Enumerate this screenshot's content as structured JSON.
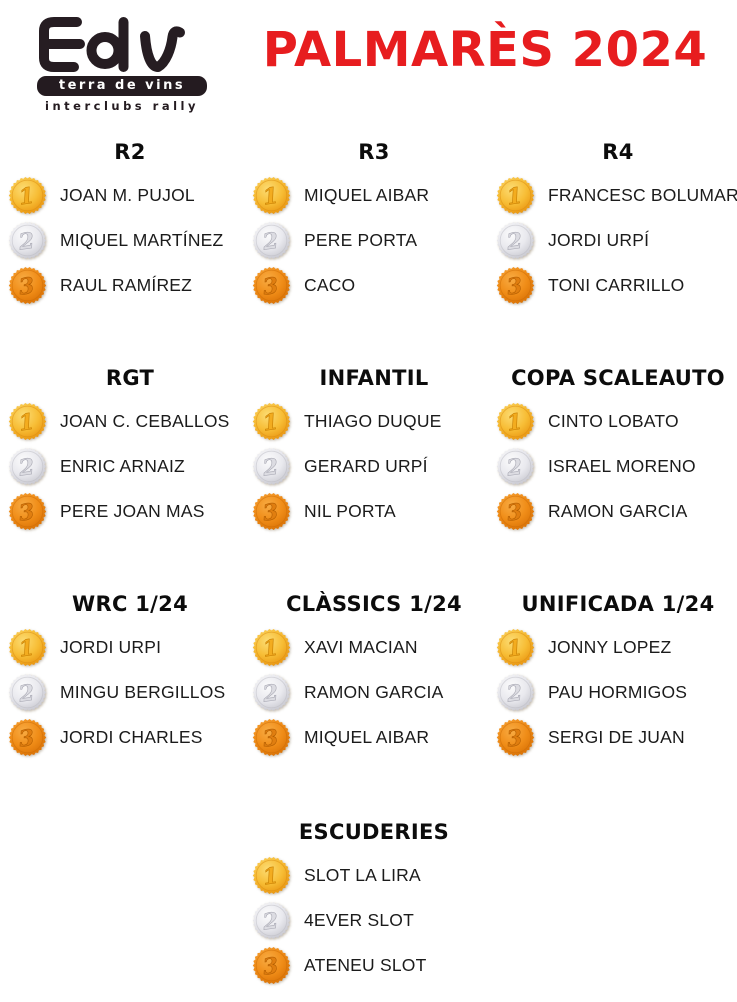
{
  "header": {
    "logo": {
      "acronym": "tdv",
      "subtitle": "terra de vins",
      "tagline": "interclubs rally"
    },
    "title": "PALMARÈS 2024",
    "title_color": "#e71d1f"
  },
  "medal_colors": {
    "gold": {
      "light": "#fcdc74",
      "mid": "#f7bd35",
      "dark": "#e8920e",
      "ring": "#d98a10",
      "num_fill": "#f3ac1f",
      "num_stroke": "#c67d00"
    },
    "silver": {
      "light": "#fbfbfc",
      "mid": "#e9e9ee",
      "dark": "#c5c5cd",
      "ring": "#b9b9c2",
      "num_fill": "#dcdce2",
      "num_stroke": "#a9a9b4"
    },
    "bronze": {
      "light": "#f8ab43",
      "mid": "#f08d18",
      "dark": "#d87004",
      "ring": "#c96a06",
      "num_fill": "#e07e10",
      "num_stroke": "#b25d00"
    }
  },
  "categories": [
    {
      "title": "R2",
      "podium": [
        {
          "rank": 1,
          "medal": "gold",
          "name": "JOAN M. PUJOL"
        },
        {
          "rank": 2,
          "medal": "silver",
          "name": "MIQUEL MARTÍNEZ"
        },
        {
          "rank": 3,
          "medal": "bronze",
          "name": "RAUL RAMÍREZ"
        }
      ]
    },
    {
      "title": "R3",
      "podium": [
        {
          "rank": 1,
          "medal": "gold",
          "name": "MIQUEL AIBAR"
        },
        {
          "rank": 2,
          "medal": "silver",
          "name": "PERE PORTA"
        },
        {
          "rank": 3,
          "medal": "bronze",
          "name": "CACO"
        }
      ]
    },
    {
      "title": "R4",
      "podium": [
        {
          "rank": 1,
          "medal": "gold",
          "name": "FRANCESC BOLUMAR"
        },
        {
          "rank": 2,
          "medal": "silver",
          "name": "JORDI URPÍ"
        },
        {
          "rank": 3,
          "medal": "bronze",
          "name": "TONI CARRILLO"
        }
      ]
    },
    {
      "title": "RGT",
      "podium": [
        {
          "rank": 1,
          "medal": "gold",
          "name": "JOAN C. CEBALLOS"
        },
        {
          "rank": 2,
          "medal": "silver",
          "name": "ENRIC ARNAIZ"
        },
        {
          "rank": 3,
          "medal": "bronze",
          "name": "PERE JOAN MAS"
        }
      ]
    },
    {
      "title": "INFANTIL",
      "podium": [
        {
          "rank": 1,
          "medal": "gold",
          "name": "THIAGO DUQUE"
        },
        {
          "rank": 2,
          "medal": "silver",
          "name": "GERARD URPÍ"
        },
        {
          "rank": 3,
          "medal": "bronze",
          "name": "NIL PORTA"
        }
      ]
    },
    {
      "title": "COPA SCALEAUTO",
      "podium": [
        {
          "rank": 1,
          "medal": "gold",
          "name": "CINTO LOBATO"
        },
        {
          "rank": 2,
          "medal": "silver",
          "name": "ISRAEL MORENO"
        },
        {
          "rank": 3,
          "medal": "bronze",
          "name": "RAMON GARCIA"
        }
      ]
    },
    {
      "title": "WRC 1/24",
      "podium": [
        {
          "rank": 1,
          "medal": "gold",
          "name": "JORDI URPI"
        },
        {
          "rank": 2,
          "medal": "silver",
          "name": "MINGU BERGILLOS"
        },
        {
          "rank": 3,
          "medal": "bronze",
          "name": "JORDI CHARLES"
        }
      ]
    },
    {
      "title": "CLÀSSICS 1/24",
      "podium": [
        {
          "rank": 1,
          "medal": "gold",
          "name": "XAVI MACIAN"
        },
        {
          "rank": 2,
          "medal": "silver",
          "name": "RAMON GARCIA"
        },
        {
          "rank": 3,
          "medal": "bronze",
          "name": "MIQUEL AIBAR"
        }
      ]
    },
    {
      "title": "UNIFICADA 1/24",
      "podium": [
        {
          "rank": 1,
          "medal": "gold",
          "name": "JONNY LOPEZ"
        },
        {
          "rank": 2,
          "medal": "silver",
          "name": "PAU HORMIGOS"
        },
        {
          "rank": 3,
          "medal": "bronze",
          "name": "SERGI DE JUAN"
        }
      ]
    },
    {
      "title": "ESCUDERIES",
      "podium": [
        {
          "rank": 1,
          "medal": "gold",
          "name": "SLOT LA LIRA"
        },
        {
          "rank": 2,
          "medal": "silver",
          "name": "4EVER SLOT"
        },
        {
          "rank": 3,
          "medal": "bronze",
          "name": "ATENEU SLOT"
        }
      ]
    }
  ]
}
